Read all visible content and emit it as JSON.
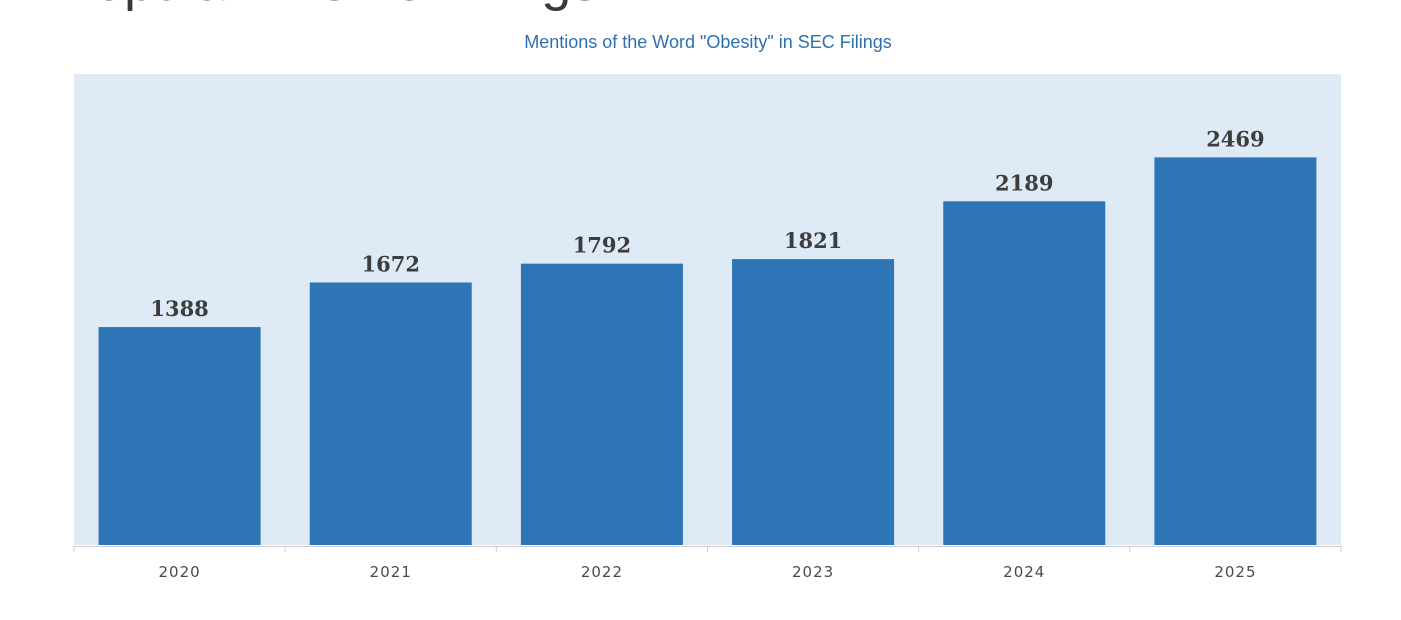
{
  "page": {
    "heading": "Popular in SEC Filings"
  },
  "chart_data": {
    "type": "bar",
    "title": "Mentions of the Word \"Obesity\" in SEC Filings",
    "xlabel": "",
    "ylabel": "",
    "categories": [
      "2020",
      "2021",
      "2022",
      "2023",
      "2024",
      "2025"
    ],
    "values": [
      1388,
      1672,
      1792,
      1821,
      2189,
      2469
    ],
    "ylim": [
      0,
      3000
    ],
    "grid": false,
    "legend": "none",
    "data_labels": true,
    "colors": {
      "bar": "#2e75b6",
      "plot_background": "#deeaf6",
      "title": "#2f6fb0",
      "data_label": "#3d3d3d",
      "tick_label": "#4a4a4a",
      "axis": "#cccccc"
    }
  }
}
